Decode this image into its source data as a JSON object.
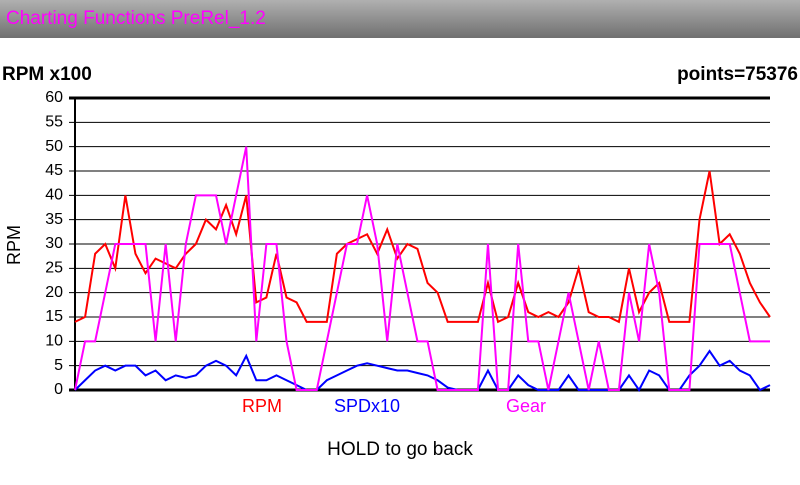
{
  "app_bar": {
    "title": "Charting Functions PreRel_1.2"
  },
  "chart_data": {
    "type": "line",
    "title": "RPM x100",
    "points_label": "points=75376",
    "ylabel": "RPM",
    "ylim": [
      0,
      60
    ],
    "yticks": [
      0,
      5,
      10,
      15,
      20,
      25,
      30,
      35,
      40,
      45,
      50,
      55,
      60
    ],
    "grid": true,
    "series": [
      {
        "name": "RPM",
        "color": "#ff0000",
        "values": [
          14,
          15,
          28,
          30,
          25,
          40,
          28,
          24,
          27,
          26,
          25,
          28,
          30,
          35,
          33,
          38,
          32,
          40,
          18,
          19,
          28,
          19,
          18,
          14,
          14,
          14,
          28,
          30,
          31,
          32,
          28,
          33,
          27,
          30,
          29,
          22,
          20,
          14,
          14,
          14,
          14,
          22,
          14,
          15,
          22,
          16,
          15,
          16,
          15,
          18,
          25,
          16,
          15,
          15,
          14,
          25,
          16,
          20,
          22,
          14,
          14,
          14,
          35,
          45,
          30,
          32,
          28,
          22,
          18,
          15
        ]
      },
      {
        "name": "SPDx10",
        "color": "#0000ff",
        "values": [
          0,
          2,
          4,
          5,
          4,
          5,
          5,
          3,
          4,
          2,
          3,
          2.5,
          3,
          5,
          6,
          5,
          3,
          7,
          2,
          2,
          3,
          2,
          1,
          0,
          0,
          2,
          3,
          4,
          5,
          5.5,
          5,
          4.5,
          4,
          4,
          3.5,
          3,
          2,
          0.5,
          0,
          0,
          0,
          4,
          0,
          0,
          3,
          1,
          0,
          0,
          0,
          3,
          0,
          0,
          0,
          0,
          0,
          3,
          0,
          4,
          3,
          0,
          0,
          3,
          5,
          8,
          5,
          6,
          4,
          3,
          0,
          1
        ]
      },
      {
        "name": "Gear",
        "color": "#ff00ff",
        "values": [
          0,
          10,
          10,
          20,
          30,
          30,
          30,
          30,
          10,
          30,
          10,
          30,
          40,
          40,
          40,
          30,
          40,
          50,
          10,
          30,
          30,
          10,
          0,
          0,
          0,
          10,
          20,
          30,
          30,
          40,
          30,
          10,
          30,
          20,
          10,
          10,
          0,
          0,
          0,
          0,
          0,
          30,
          0,
          0,
          30,
          10,
          10,
          0,
          10,
          20,
          10,
          0,
          10,
          0,
          0,
          20,
          10,
          30,
          20,
          0,
          0,
          0,
          30,
          30,
          30,
          30,
          20,
          10,
          10,
          10
        ]
      }
    ]
  },
  "footer": "HOLD to go back"
}
